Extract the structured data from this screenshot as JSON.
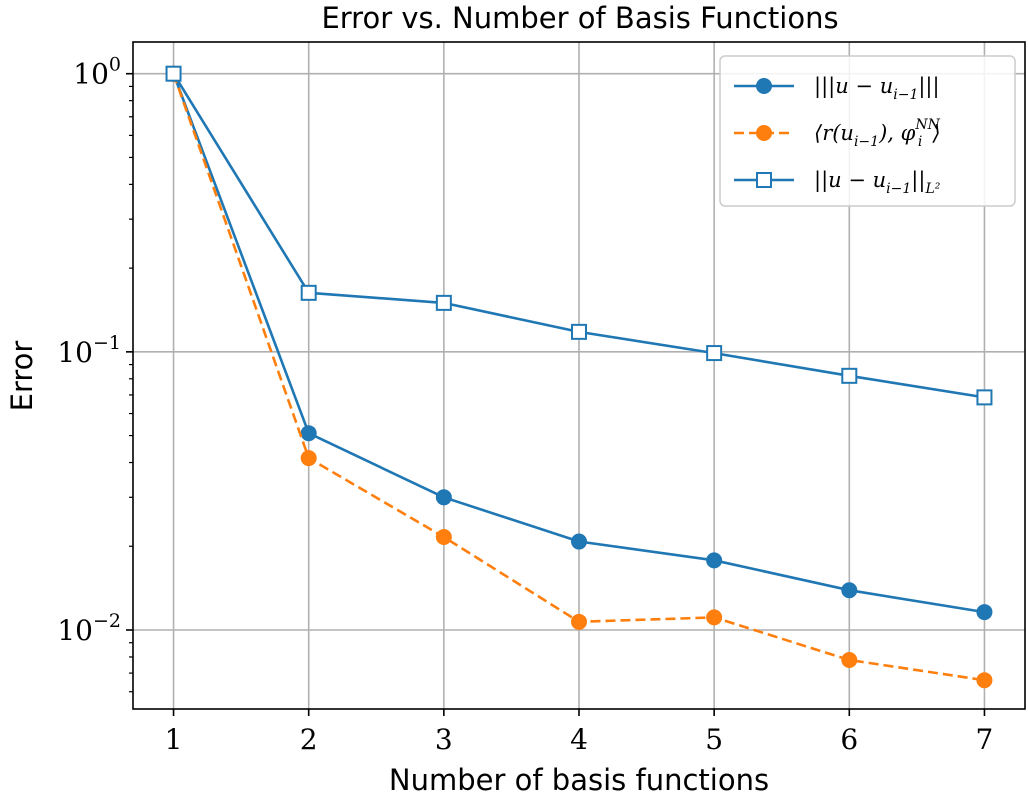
{
  "chart_data": {
    "type": "line",
    "title": "Error vs. Number of Basis Functions",
    "xlabel": "Number of basis functions",
    "ylabel": "Error",
    "yscale": "log",
    "ylim": [
      0.0052,
      1.3
    ],
    "xlim": [
      0.7,
      7.3
    ],
    "grid": true,
    "legend_position": "top-right",
    "x": [
      1,
      2,
      3,
      4,
      5,
      6,
      7
    ],
    "x_ticks": [
      "1",
      "2",
      "3",
      "4",
      "5",
      "6",
      "7"
    ],
    "y_ticks": [
      {
        "value": 1,
        "base": "10",
        "exp": "0"
      },
      {
        "value": 0.1,
        "base": "10",
        "exp": "−1"
      },
      {
        "value": 0.01,
        "base": "10",
        "exp": "−2"
      }
    ],
    "series": [
      {
        "name": "|||u − u_{i−1}|||",
        "legend_main": "|||u − u",
        "legend_sub": "i−1",
        "legend_tail": "|||",
        "color": "#1f77b4",
        "linestyle": "solid",
        "marker": "filled-circle",
        "values": [
          1.0,
          0.051,
          0.03,
          0.0208,
          0.0178,
          0.0139,
          0.0116
        ]
      },
      {
        "name": "⟨r(u_{i−1}), φ_i^{NN}⟩",
        "legend_main": "⟨r(u",
        "legend_sub": "i−1",
        "legend_tail": "), φ",
        "legend_sub2": "i",
        "legend_sup2": "NN",
        "legend_end": "⟩",
        "color": "#ff7f0e",
        "linestyle": "dashed",
        "marker": "filled-circle",
        "values": [
          1.0,
          0.0415,
          0.0216,
          0.0107,
          0.0111,
          0.0078,
          0.0066
        ]
      },
      {
        "name": "||u − u_{i−1}||_{L²}",
        "legend_main": "||u − u",
        "legend_sub": "i−1",
        "legend_tail": "||",
        "legend_sub2": "L²",
        "color": "#1f77b4",
        "linestyle": "solid",
        "marker": "open-square",
        "values": [
          1.0,
          0.163,
          0.15,
          0.118,
          0.099,
          0.082,
          0.0686
        ]
      }
    ]
  }
}
